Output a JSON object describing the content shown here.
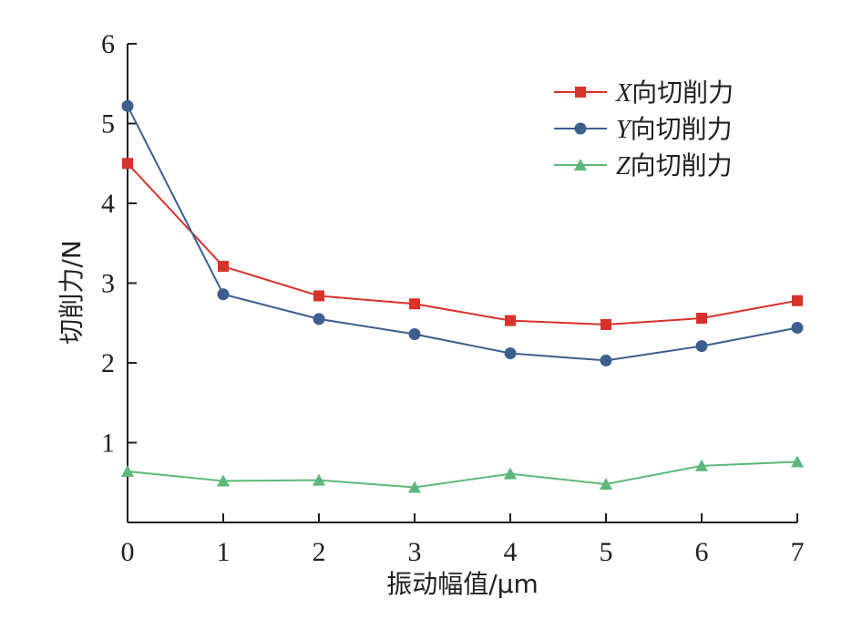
{
  "chart_data": {
    "type": "line",
    "xlabel": "振动幅值/μm",
    "ylabel": "切削力/N",
    "x": [
      0,
      1,
      2,
      3,
      4,
      5,
      6,
      7
    ],
    "xlim": [
      0,
      7
    ],
    "ylim": [
      0,
      6
    ],
    "xticks": [
      "0",
      "1",
      "2",
      "3",
      "4",
      "5",
      "6",
      "7"
    ],
    "yticks": [
      "1",
      "2",
      "3",
      "4",
      "5",
      "6"
    ],
    "grid": false,
    "legend_position": "top-right",
    "series": [
      {
        "name": "X向切削力",
        "name_italic": "X",
        "name_rest": "向切削力",
        "color": "#d9322d",
        "marker": "square",
        "values": [
          4.5,
          3.21,
          2.84,
          2.74,
          2.53,
          2.48,
          2.56,
          2.78
        ]
      },
      {
        "name": "Y向切削力",
        "name_italic": "Y",
        "name_rest": "向切削力",
        "color": "#3d5f8e",
        "marker": "circle",
        "values": [
          5.22,
          2.86,
          2.55,
          2.36,
          2.12,
          2.03,
          2.21,
          2.44
        ]
      },
      {
        "name": "Z向切削力",
        "name_italic": "Z",
        "name_rest": "向切削力",
        "color": "#5db87a",
        "marker": "triangle",
        "values": [
          0.64,
          0.52,
          0.53,
          0.44,
          0.61,
          0.48,
          0.71,
          0.76
        ]
      }
    ]
  }
}
